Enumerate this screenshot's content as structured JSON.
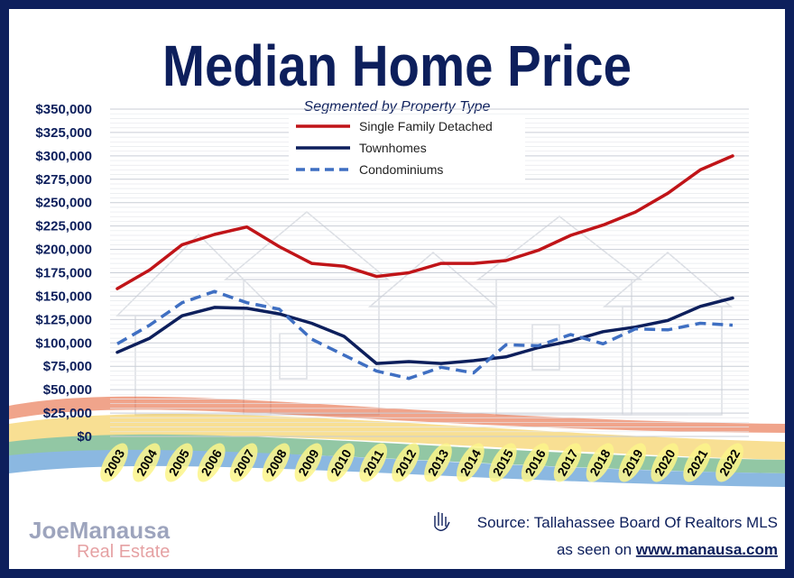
{
  "chart_data": {
    "type": "line",
    "title": "Median Home Price",
    "subtitle": "Segmented by Property Type",
    "categories": [
      "2003",
      "2004",
      "2005",
      "2006",
      "2007",
      "2008",
      "2009",
      "2010",
      "2011",
      "2012",
      "2013",
      "2014",
      "2015",
      "2016",
      "2017",
      "2018",
      "2019",
      "2020",
      "2021",
      "2022"
    ],
    "series": [
      {
        "name": "Single Family Detached",
        "color": "#c01418",
        "style": "solid",
        "values": [
          158000,
          178000,
          205000,
          216000,
          224000,
          203000,
          185000,
          182000,
          171000,
          175000,
          185000,
          185000,
          188000,
          199000,
          215000,
          226000,
          240000,
          260000,
          285000,
          300000
        ]
      },
      {
        "name": "Townhomes",
        "color": "#0d1f5c",
        "style": "solid",
        "values": [
          90000,
          105000,
          129000,
          138000,
          137000,
          131000,
          121000,
          107000,
          78000,
          80000,
          78000,
          81000,
          85000,
          95000,
          102000,
          112000,
          117000,
          124000,
          139000,
          148000
        ]
      },
      {
        "name": "Condominiums",
        "color": "#3f6fc2",
        "style": "dashed",
        "values": [
          99000,
          119000,
          143000,
          155000,
          143000,
          136000,
          104000,
          87000,
          70000,
          62000,
          74000,
          68000,
          98000,
          97000,
          109000,
          99000,
          115000,
          114000,
          121000,
          119000
        ]
      }
    ],
    "yticks": [
      "$350,000",
      "$325,000",
      "$300,000",
      "$275,000",
      "$250,000",
      "$225,000",
      "$200,000",
      "$175,000",
      "$150,000",
      "$125,000",
      "$100,000",
      "$75,000",
      "$50,000",
      "$25,000",
      "$0"
    ],
    "ylim": [
      0,
      350000
    ],
    "grid": true,
    "legend_position": "top-center"
  },
  "footer": {
    "source_text": "Source: Tallahassee Board Of Realtors MLS",
    "seen_prefix": "as seen on ",
    "seen_url": "www.manausa.com"
  },
  "logo": {
    "line1": "JoeManausa",
    "line2": "Real Estate"
  },
  "icons": {
    "source_icon": "hand-icon"
  }
}
